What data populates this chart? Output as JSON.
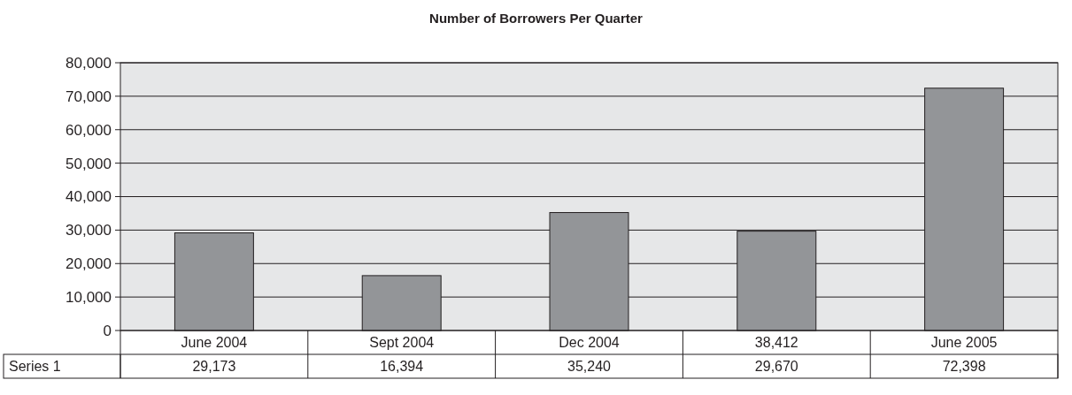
{
  "chart_data": {
    "type": "bar",
    "title": "Number of Borrowers Per Quarter",
    "categories": [
      "June 2004",
      "Sept 2004",
      "Dec 2004",
      "38,412",
      "June 2005"
    ],
    "series": [
      {
        "name": "Series 1",
        "color": "#939598",
        "values": [
          29173,
          16394,
          35240,
          29670,
          72398
        ],
        "value_labels": [
          "29,173",
          "16,394",
          "35,240",
          "29,670",
          "72,398"
        ]
      }
    ],
    "ylim": [
      0,
      80000
    ],
    "yticks": [
      {
        "value": 0,
        "label": "0"
      },
      {
        "value": 10000,
        "label": "10,000"
      },
      {
        "value": 20000,
        "label": "20,000"
      },
      {
        "value": 30000,
        "label": "30,000"
      },
      {
        "value": 40000,
        "label": "40,000"
      },
      {
        "value": 50000,
        "label": "50,000"
      },
      {
        "value": 60000,
        "label": "60,000"
      },
      {
        "value": 70000,
        "label": "70,000"
      },
      {
        "value": 80000,
        "label": "80,000"
      }
    ],
    "grid": "y"
  }
}
